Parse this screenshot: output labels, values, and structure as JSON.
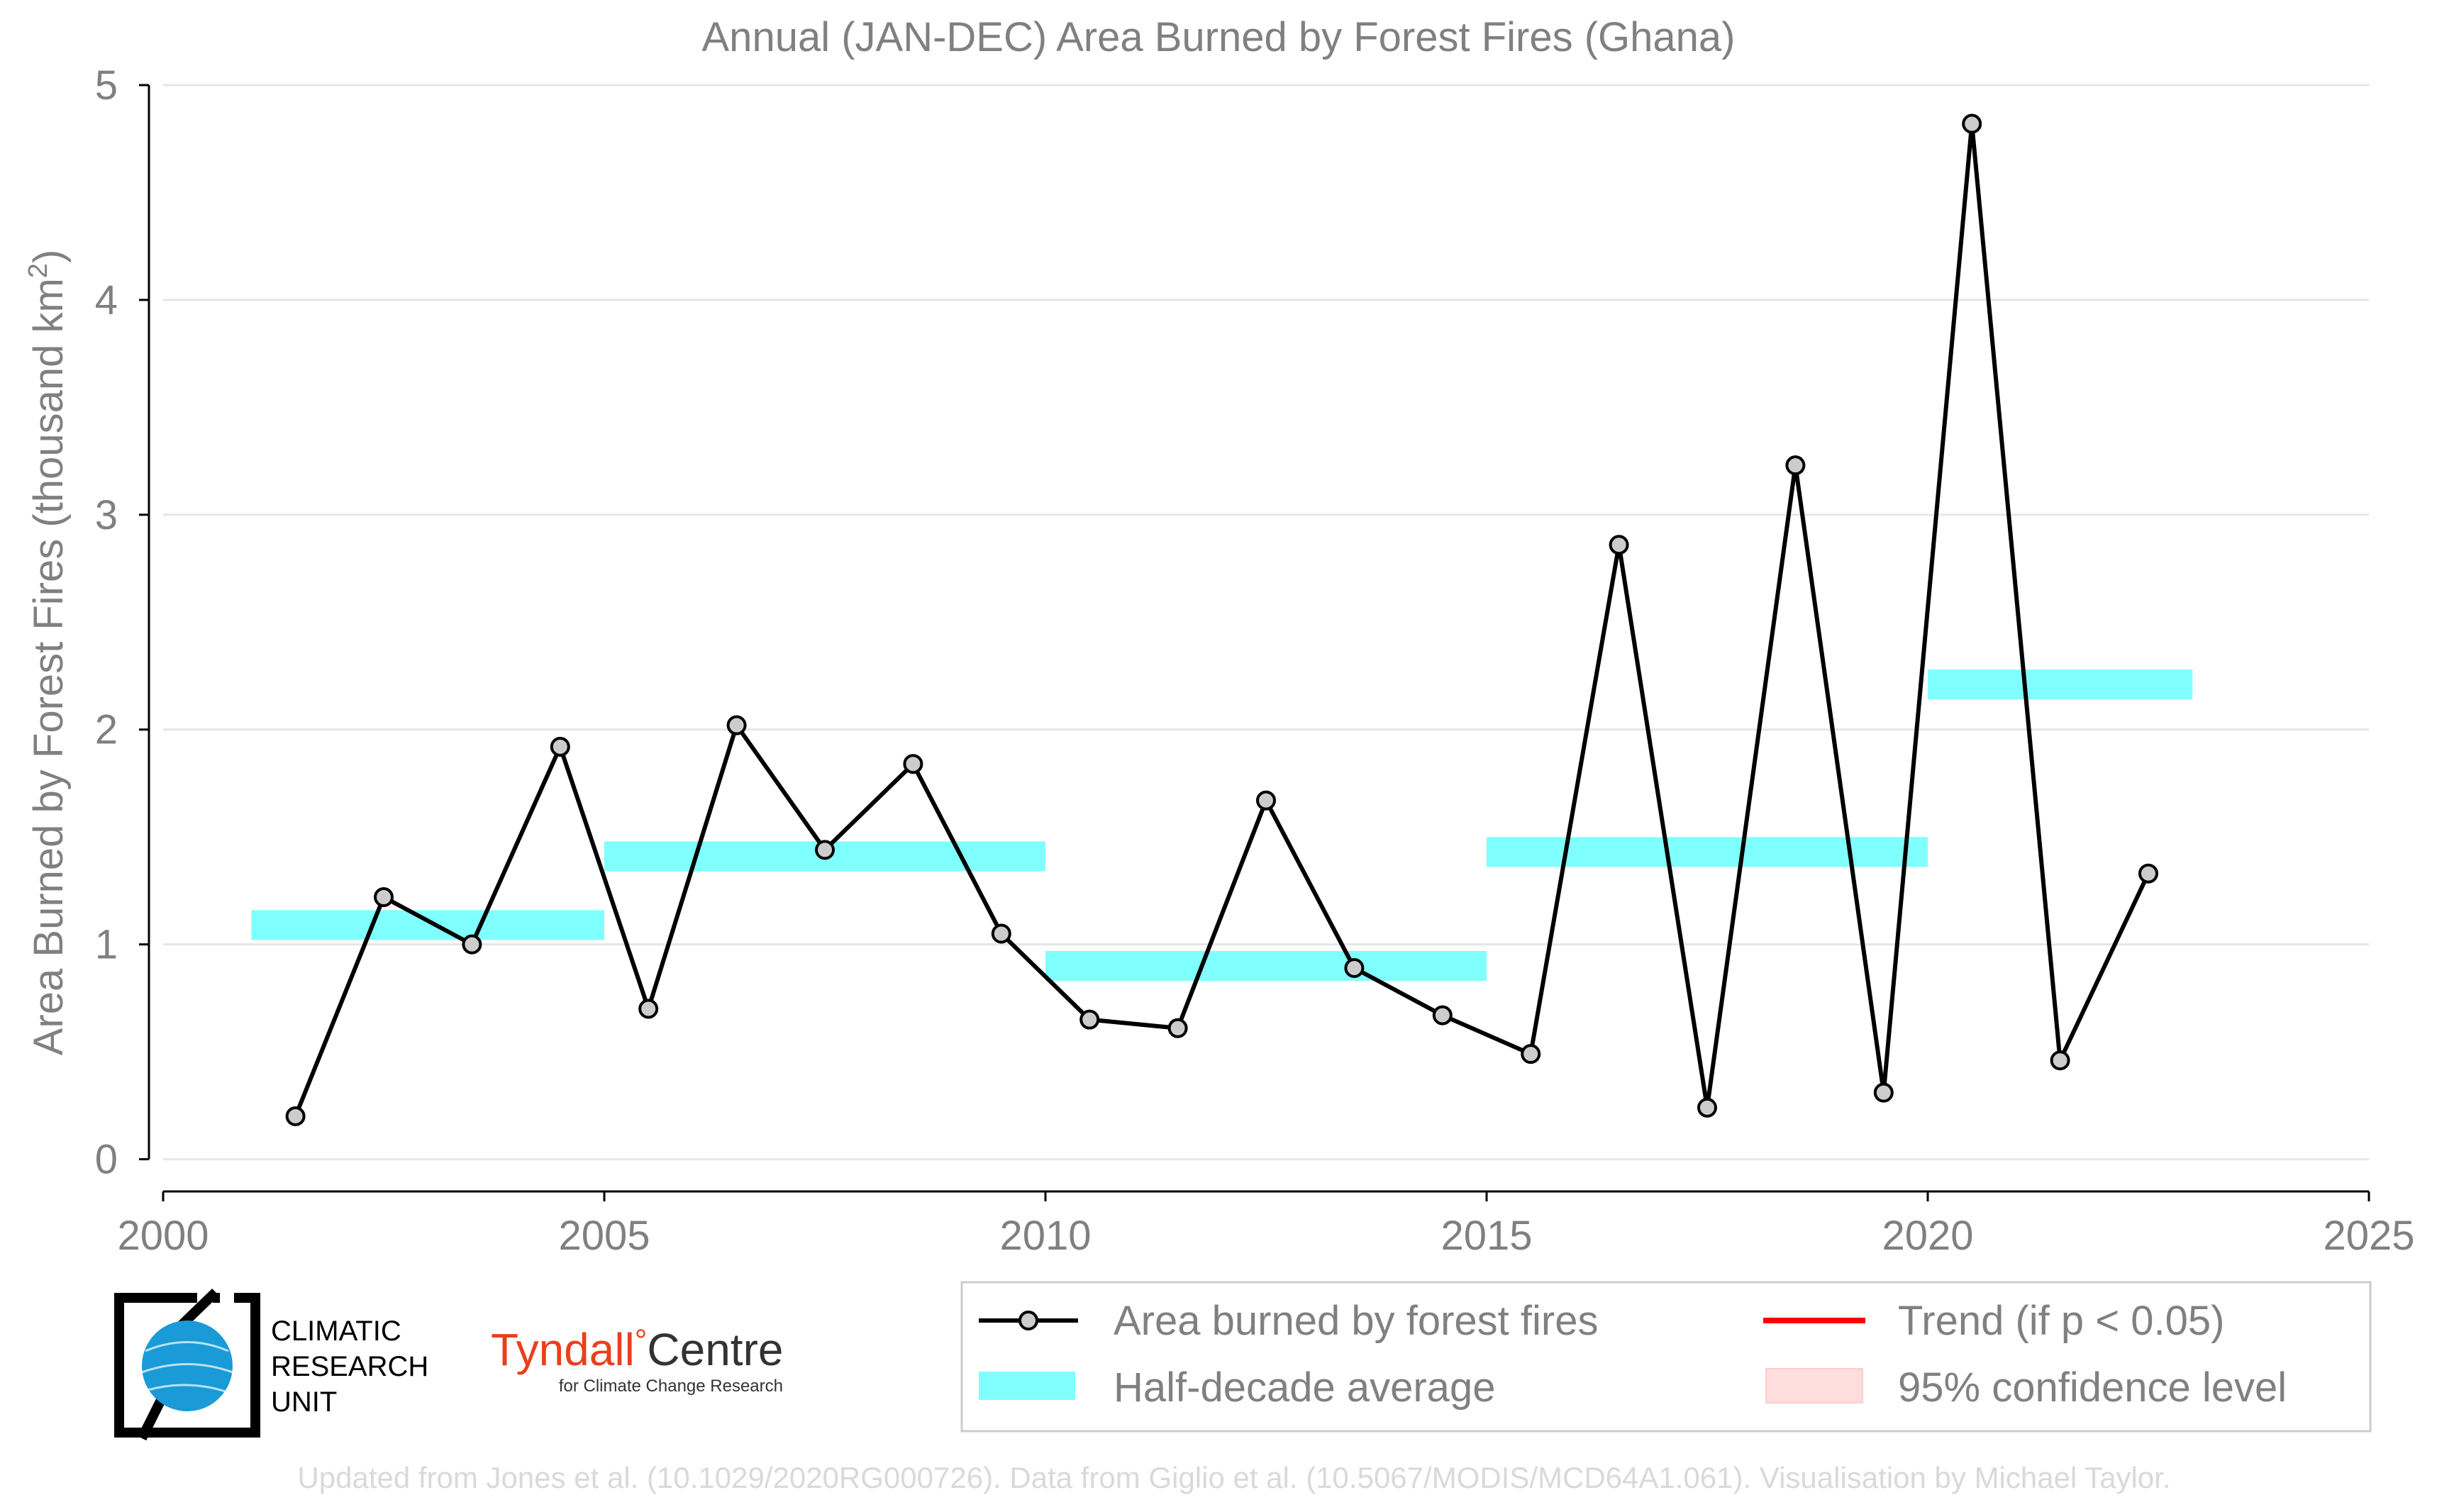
{
  "chart_data": {
    "type": "line",
    "title": "Annual (JAN-DEC) Area Burned by Forest Fires (Ghana)",
    "ylabel": "Area Burned by Forest Fires (thousand km²)",
    "ylabel_main": "Area Burned by Forest Fires (thousand km",
    "ylabel_sup": "2",
    "ylabel_close": ")",
    "xlim": [
      2000,
      2025
    ],
    "ylim": [
      -0.15,
      5.0
    ],
    "xticks": [
      2000,
      2005,
      2010,
      2015,
      2020,
      2025
    ],
    "yticks": [
      0,
      1,
      2,
      3,
      4,
      5
    ],
    "grid": "horizontal",
    "legend_position": "bottom-right",
    "series": [
      {
        "name": "Area burned by forest fires",
        "color": "#000000",
        "marker_fill": "#cccccc",
        "x": [
          2001.5,
          2002.5,
          2003.5,
          2004.5,
          2005.5,
          2006.5,
          2007.5,
          2008.5,
          2009.5,
          2010.5,
          2011.5,
          2012.5,
          2013.5,
          2014.5,
          2015.5,
          2016.5,
          2017.5,
          2018.5,
          2019.5,
          2020.5,
          2021.5,
          2022.5
        ],
        "values": [
          0.2,
          1.22,
          1.0,
          1.92,
          0.7,
          2.02,
          1.44,
          1.84,
          1.05,
          0.65,
          0.61,
          1.67,
          0.89,
          0.67,
          0.49,
          2.86,
          0.24,
          3.23,
          0.31,
          4.82,
          0.46,
          1.33
        ]
      }
    ],
    "half_decade_averages": {
      "name": "Half-decade average",
      "color": "#80ffff",
      "segments": [
        {
          "x_start": 2001,
          "x_end": 2005,
          "value": 1.09
        },
        {
          "x_start": 2005,
          "x_end": 2010,
          "value": 1.41
        },
        {
          "x_start": 2010,
          "x_end": 2015,
          "value": 0.9
        },
        {
          "x_start": 2015,
          "x_end": 2020,
          "value": 1.43
        },
        {
          "x_start": 2020,
          "x_end": 2023,
          "value": 2.21
        }
      ]
    },
    "legend": [
      {
        "key": "line",
        "label": "Area burned by forest fires"
      },
      {
        "key": "trend",
        "label": "Trend (if p < 0.05)",
        "color": "#ff0000"
      },
      {
        "key": "avg",
        "label": "Half-decade average"
      },
      {
        "key": "ci",
        "label": "95% confidence level",
        "color": "#ffdddd"
      }
    ],
    "footer": "Updated from Jones et al. (10.1029/2020RG000726). Data from Giglio et al. (10.5067/MODIS/MCD64A1.061). Visualisation by Michael Taylor."
  },
  "logos": {
    "cru": {
      "line1": "CLIMATIC",
      "line2": "RESEARCH",
      "line3": "UNIT",
      "color": "#1a9bd7"
    },
    "tyndall": {
      "name1": "Tyndall",
      "degree": "°",
      "name2": "Centre",
      "tagline": "for Climate Change Research",
      "color": "#e8401c"
    }
  },
  "colors": {
    "axis_text": "#808080",
    "grid": "#e6e6e6",
    "footer_text": "#d9d9d9",
    "legend_border": "#cccccc"
  }
}
